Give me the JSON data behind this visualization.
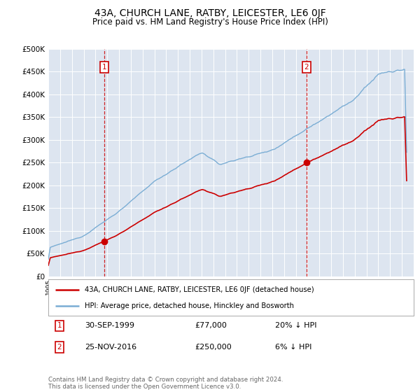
{
  "title": "43A, CHURCH LANE, RATBY, LEICESTER, LE6 0JF",
  "subtitle": "Price paid vs. HM Land Registry's House Price Index (HPI)",
  "sale1_date": "30-SEP-1999",
  "sale1_price": 77000,
  "sale1_label": "£77,000",
  "sale1_pct": "20% ↓ HPI",
  "sale2_date": "25-NOV-2016",
  "sale2_price": 250000,
  "sale2_label": "£250,000",
  "sale2_pct": "6% ↓ HPI",
  "legend_label_red": "43A, CHURCH LANE, RATBY, LEICESTER, LE6 0JF (detached house)",
  "legend_label_blue": "HPI: Average price, detached house, Hinckley and Bosworth",
  "footnote": "Contains HM Land Registry data © Crown copyright and database right 2024.\nThis data is licensed under the Open Government Licence v3.0.",
  "red_color": "#cc0000",
  "blue_color": "#7aadd4",
  "dashed_color": "#cc0000",
  "background_color": "#dde5f0",
  "ylim": [
    0,
    500000
  ],
  "yticks": [
    0,
    50000,
    100000,
    150000,
    200000,
    250000,
    300000,
    350000,
    400000,
    450000,
    500000
  ],
  "sale1_year": 1999.75,
  "sale2_year": 2016.9
}
